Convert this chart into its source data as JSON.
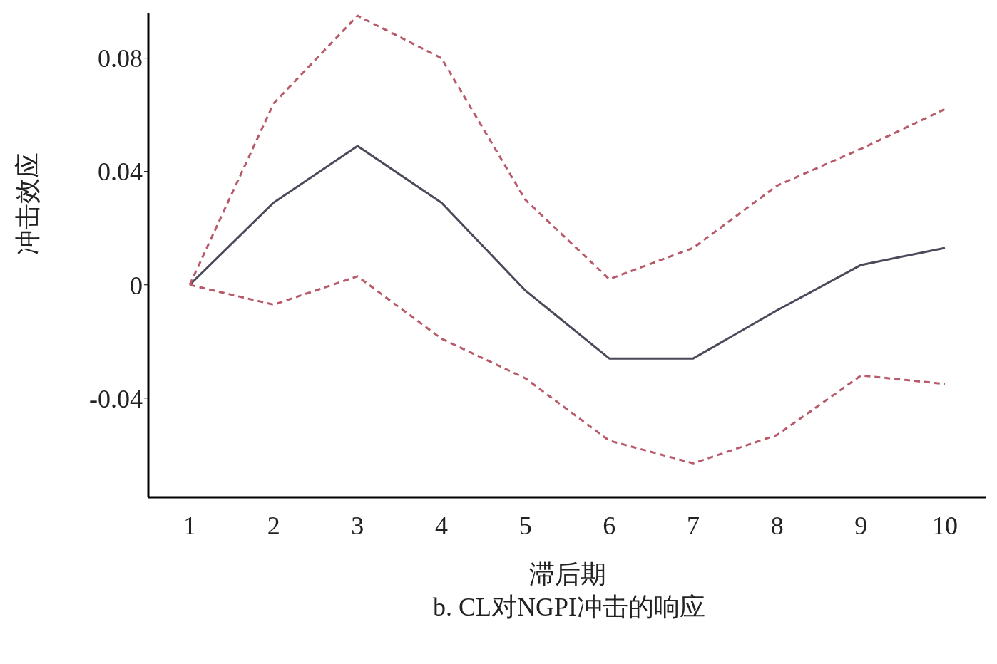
{
  "chart_data": {
    "type": "line",
    "title": "b. CL对NGPI冲击的响应",
    "xlabel": "滞后期",
    "ylabel": "冲击效应",
    "categories": [
      "1",
      "2",
      "3",
      "4",
      "5",
      "6",
      "7",
      "8",
      "9",
      "10"
    ],
    "series": [
      {
        "color": "#4a4a5a",
        "line_style": "solid",
        "values": [
          0,
          0.029,
          0.049,
          0.029,
          -0.002,
          -0.026,
          -0.026,
          -0.009,
          0.007,
          0.013
        ]
      },
      {
        "color": "#b85a6a",
        "line_style": "dashed",
        "values": [
          0,
          0.064,
          0.095,
          0.08,
          0.03,
          0.002,
          0.013,
          0.035,
          0.048,
          0.062
        ]
      },
      {
        "color": "#b85a6a",
        "line_style": "dashed",
        "values": [
          0,
          -0.007,
          0.003,
          -0.019,
          -0.033,
          -0.055,
          -0.063,
          -0.053,
          -0.032,
          -0.035
        ]
      }
    ],
    "ylim": [
      -0.075,
      0.096
    ],
    "yticks": [
      {
        "value": -0.04,
        "label": "-0.04"
      },
      {
        "value": 0,
        "label": "0"
      },
      {
        "value": 0.04,
        "label": "0.04"
      },
      {
        "value": 0.08,
        "label": "0.08"
      }
    ]
  }
}
